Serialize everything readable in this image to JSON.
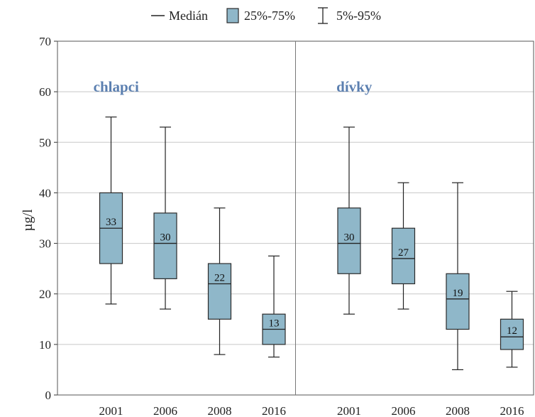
{
  "chart_data": {
    "type": "boxplot",
    "title": "",
    "ylabel": "µg/l",
    "ylim": [
      0,
      70
    ],
    "yticks": [
      0,
      10,
      20,
      30,
      40,
      50,
      60,
      70
    ],
    "grid": true,
    "legend": {
      "placement": "top-center",
      "items": [
        {
          "symbol": "line",
          "label": "Medián"
        },
        {
          "symbol": "box",
          "label": "25%-75%"
        },
        {
          "symbol": "whisker",
          "label": "5%-95%"
        }
      ]
    },
    "colors": {
      "box_fill": "#8fb7c9",
      "box_stroke": "#2b2b2b",
      "panel_title": "#5b7fb0",
      "grid": "#c8c8c8"
    },
    "panels": [
      {
        "name": "chlapci",
        "categories": [
          "2001",
          "2006",
          "2008",
          "2016"
        ],
        "boxes": [
          {
            "p5": 18,
            "q1": 26,
            "median": 33,
            "q3": 40,
            "p95": 55,
            "label": "33"
          },
          {
            "p5": 17,
            "q1": 23,
            "median": 30,
            "q3": 36,
            "p95": 53,
            "label": "30"
          },
          {
            "p5": 8,
            "q1": 15,
            "median": 22,
            "q3": 26,
            "p95": 37,
            "label": "22"
          },
          {
            "p5": 7.5,
            "q1": 10,
            "median": 13,
            "q3": 16,
            "p95": 27.5,
            "label": "13"
          }
        ]
      },
      {
        "name": "dívky",
        "categories": [
          "2001",
          "2006",
          "2008",
          "2016"
        ],
        "boxes": [
          {
            "p5": 16,
            "q1": 24,
            "median": 30,
            "q3": 37,
            "p95": 53,
            "label": "30"
          },
          {
            "p5": 17,
            "q1": 22,
            "median": 27,
            "q3": 33,
            "p95": 42,
            "label": "27"
          },
          {
            "p5": 5,
            "q1": 13,
            "median": 19,
            "q3": 24,
            "p95": 42,
            "label": "19"
          },
          {
            "p5": 5.5,
            "q1": 9,
            "median": 11.5,
            "q3": 15,
            "p95": 20.5,
            "label": "12"
          }
        ]
      }
    ]
  }
}
